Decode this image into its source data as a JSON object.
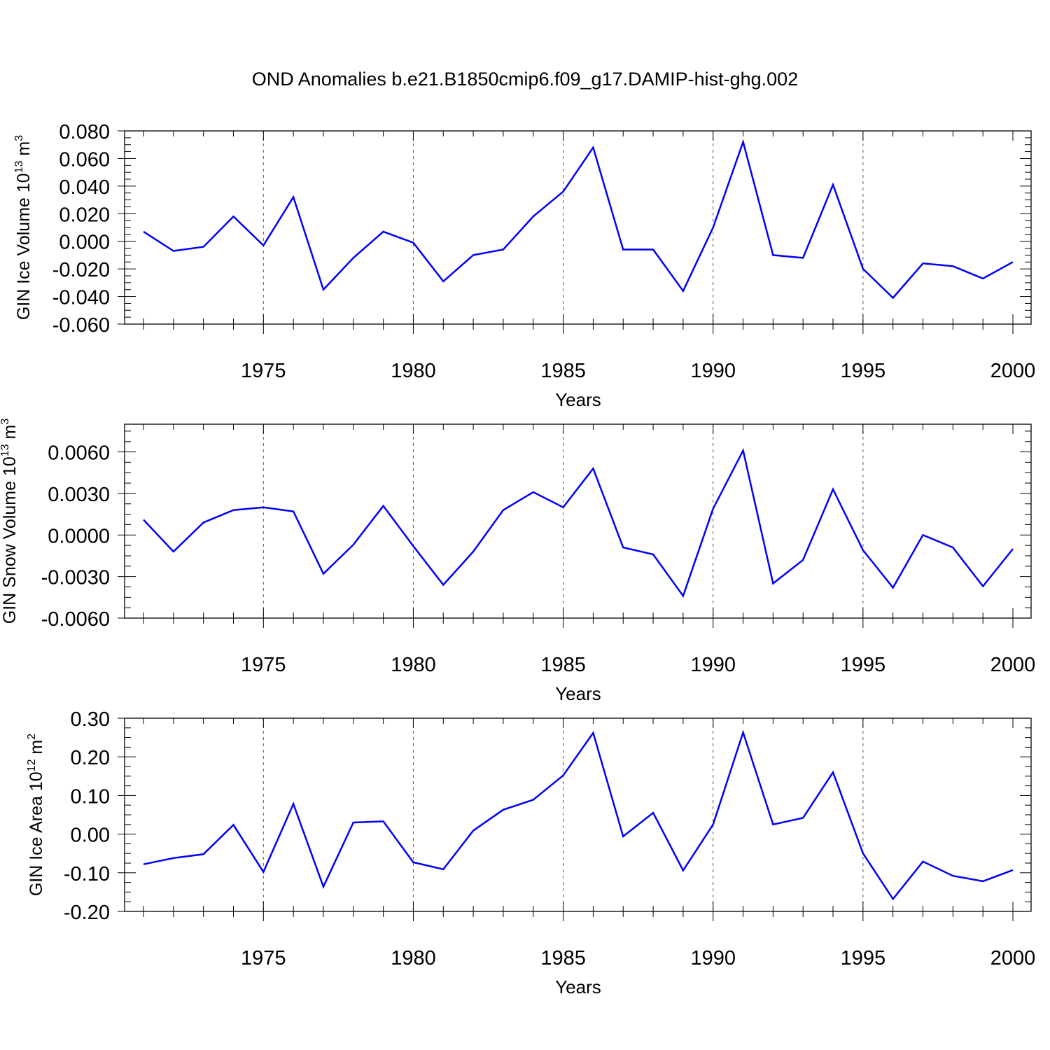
{
  "title": "OND Anomalies b.e21.B1850cmip6.f09_g17.DAMIP-hist-ghg.002",
  "line_color": "#0000ff",
  "chart_data": [
    {
      "type": "line",
      "ylabel": "GIN Ice Volume 10",
      "ylabel_sup": "13",
      "ylabel_unit": " m",
      "ylabel_unit_sup": "3",
      "xlabel": "Years",
      "xlim": [
        1971,
        2000
      ],
      "ylim": [
        -0.06,
        0.08
      ],
      "yticks": [
        -0.06,
        -0.04,
        -0.02,
        0.0,
        0.02,
        0.04,
        0.06,
        0.08
      ],
      "ytick_labels": [
        "-0.060",
        "-0.040",
        "-0.020",
        "0.000",
        "0.020",
        "0.040",
        "0.060",
        "0.080"
      ],
      "xticks": [
        1975,
        1980,
        1985,
        1990,
        1995,
        2000
      ],
      "xtick_labels": [
        "1975",
        "1980",
        "1985",
        "1990",
        "1995",
        "2000"
      ],
      "grid_x": true,
      "x": [
        1971,
        1972,
        1973,
        1974,
        1975,
        1976,
        1977,
        1978,
        1979,
        1980,
        1981,
        1982,
        1983,
        1984,
        1985,
        1986,
        1987,
        1988,
        1989,
        1990,
        1991,
        1992,
        1993,
        1994,
        1995,
        1996,
        1997,
        1998,
        1999,
        2000
      ],
      "series": [
        {
          "values": [
            0.007,
            -0.007,
            -0.004,
            0.018,
            -0.003,
            0.032,
            -0.035,
            -0.012,
            0.007,
            -0.001,
            -0.029,
            -0.01,
            -0.006,
            0.018,
            0.036,
            0.068,
            -0.006,
            -0.006,
            -0.036,
            0.01,
            0.072,
            -0.01,
            -0.012,
            0.041,
            -0.02,
            -0.041,
            -0.016,
            -0.018,
            -0.027,
            -0.015
          ]
        }
      ]
    },
    {
      "type": "line",
      "ylabel": "GIN Snow Volume 10",
      "ylabel_sup": "13",
      "ylabel_unit": " m",
      "ylabel_unit_sup": "3",
      "xlabel": "Years",
      "xlim": [
        1971,
        2000
      ],
      "ylim": [
        -0.006,
        0.008
      ],
      "yticks": [
        -0.006,
        -0.003,
        0.0,
        0.003,
        0.006
      ],
      "ytick_labels": [
        "-0.0060",
        "-0.0030",
        "0.0000",
        "0.0030",
        "0.0060"
      ],
      "xticks": [
        1975,
        1980,
        1985,
        1990,
        1995,
        2000
      ],
      "xtick_labels": [
        "1975",
        "1980",
        "1985",
        "1990",
        "1995",
        "2000"
      ],
      "grid_x": true,
      "x": [
        1971,
        1972,
        1973,
        1974,
        1975,
        1976,
        1977,
        1978,
        1979,
        1980,
        1981,
        1982,
        1983,
        1984,
        1985,
        1986,
        1987,
        1988,
        1989,
        1990,
        1991,
        1992,
        1993,
        1994,
        1995,
        1996,
        1997,
        1998,
        1999,
        2000
      ],
      "series": [
        {
          "values": [
            0.0011,
            -0.0012,
            0.0009,
            0.0018,
            0.002,
            0.0017,
            -0.0028,
            -0.0007,
            0.0021,
            -0.0008,
            -0.0036,
            -0.0012,
            0.0018,
            0.0031,
            0.002,
            0.0048,
            -0.0009,
            -0.0014,
            -0.0044,
            0.0019,
            0.0061,
            -0.0035,
            -0.0018,
            0.0033,
            -0.0011,
            -0.0038,
            0.0,
            -0.0009,
            -0.0037,
            -0.001
          ]
        }
      ]
    },
    {
      "type": "line",
      "ylabel": "GIN Ice Area 10",
      "ylabel_sup": "12",
      "ylabel_unit": " m",
      "ylabel_unit_sup": "2",
      "xlabel": "Years",
      "xlim": [
        1971,
        2000
      ],
      "ylim": [
        -0.2,
        0.3
      ],
      "yticks": [
        -0.2,
        -0.1,
        0.0,
        0.1,
        0.2,
        0.3
      ],
      "ytick_labels": [
        "-0.20",
        "-0.10",
        "0.00",
        "0.10",
        "0.20",
        "0.30"
      ],
      "xticks": [
        1975,
        1980,
        1985,
        1990,
        1995,
        2000
      ],
      "xtick_labels": [
        "1975",
        "1980",
        "1985",
        "1990",
        "1995",
        "2000"
      ],
      "grid_x": true,
      "x": [
        1971,
        1972,
        1973,
        1974,
        1975,
        1976,
        1977,
        1978,
        1979,
        1980,
        1981,
        1982,
        1983,
        1984,
        1985,
        1986,
        1987,
        1988,
        1989,
        1990,
        1991,
        1992,
        1993,
        1994,
        1995,
        1996,
        1997,
        1998,
        1999,
        2000
      ],
      "series": [
        {
          "values": [
            -0.078,
            -0.062,
            -0.052,
            0.024,
            -0.098,
            0.078,
            -0.136,
            0.03,
            0.033,
            -0.073,
            -0.091,
            0.009,
            0.063,
            0.089,
            0.152,
            0.262,
            -0.006,
            0.055,
            -0.094,
            0.025,
            0.263,
            0.025,
            0.042,
            0.16,
            -0.05,
            -0.168,
            -0.071,
            -0.108,
            -0.122,
            -0.093
          ]
        }
      ]
    }
  ]
}
